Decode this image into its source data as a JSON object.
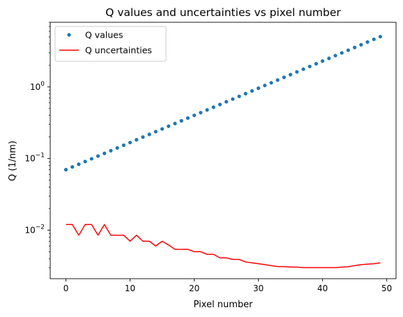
{
  "chart_data": {
    "type": "line",
    "title": "Q values and uncertainties vs pixel number",
    "xlabel": "Pixel number",
    "ylabel": "Q (1/nm)",
    "xlim": [
      -2.45,
      51.45
    ],
    "ylim": [
      0.0021,
      8.0
    ],
    "yscale": "log",
    "grid": false,
    "legend_position": "upper-left",
    "x_ticks": [
      {
        "value": 0,
        "label": "0"
      },
      {
        "value": 10,
        "label": "10"
      },
      {
        "value": 20,
        "label": "20"
      },
      {
        "value": 30,
        "label": "30"
      },
      {
        "value": 40,
        "label": "40"
      },
      {
        "value": 50,
        "label": "50"
      }
    ],
    "y_ticks": [
      {
        "value": 0.01,
        "base": "10",
        "exp": "−2"
      },
      {
        "value": 0.1,
        "base": "10",
        "exp": "−1"
      },
      {
        "value": 1,
        "base": "10",
        "exp": "0"
      }
    ],
    "series": [
      {
        "name": "Q values",
        "style": "points",
        "color": "#1f77b4",
        "x": [
          0,
          1,
          2,
          3,
          4,
          5,
          6,
          7,
          8,
          9,
          10,
          11,
          12,
          13,
          14,
          15,
          16,
          17,
          18,
          19,
          20,
          21,
          22,
          23,
          24,
          25,
          26,
          27,
          28,
          29,
          30,
          31,
          32,
          33,
          34,
          35,
          36,
          37,
          38,
          39,
          40,
          41,
          42,
          43,
          44,
          45,
          46,
          47,
          48,
          49
        ],
        "y": [
          0.07,
          0.0764,
          0.0833,
          0.0909,
          0.0992,
          0.1083,
          0.1181,
          0.1289,
          0.1407,
          0.1535,
          0.1675,
          0.1828,
          0.1995,
          0.2177,
          0.2375,
          0.2592,
          0.2829,
          0.3087,
          0.3368,
          0.3676,
          0.4011,
          0.4377,
          0.4777,
          0.5213,
          0.5688,
          0.6207,
          0.6774,
          0.7392,
          0.8066,
          0.8802,
          0.9606,
          1.0482,
          1.1439,
          1.2483,
          1.3622,
          1.4865,
          1.6221,
          1.7702,
          1.9317,
          2.108,
          2.3004,
          2.5103,
          2.7393,
          2.9893,
          3.2621,
          3.5598,
          3.8847,
          4.2392,
          4.626,
          5.0482
        ]
      },
      {
        "name": "Q uncertainties",
        "style": "line",
        "color": "#ff0000",
        "x": [
          0,
          1,
          2,
          3,
          4,
          5,
          6,
          7,
          8,
          9,
          10,
          11,
          12,
          13,
          14,
          15,
          16,
          17,
          18,
          19,
          20,
          21,
          22,
          23,
          24,
          25,
          26,
          27,
          28,
          29,
          30,
          31,
          32,
          33,
          34,
          35,
          36,
          37,
          38,
          39,
          40,
          41,
          42,
          43,
          44,
          45,
          46,
          47,
          48,
          49
        ],
        "y": [
          0.012,
          0.012,
          0.0085,
          0.012,
          0.012,
          0.0085,
          0.012,
          0.0085,
          0.0085,
          0.0085,
          0.007,
          0.0085,
          0.007,
          0.007,
          0.006,
          0.007,
          0.0062,
          0.0054,
          0.0054,
          0.0054,
          0.005,
          0.005,
          0.0046,
          0.0046,
          0.0041,
          0.0041,
          0.0039,
          0.0039,
          0.0036,
          0.0035,
          0.0034,
          0.0033,
          0.0032,
          0.0031,
          0.0031,
          0.00305,
          0.00305,
          0.003,
          0.003,
          0.003,
          0.003,
          0.003,
          0.003,
          0.00305,
          0.00308,
          0.0032,
          0.0033,
          0.00335,
          0.0034,
          0.0035
        ]
      }
    ]
  }
}
